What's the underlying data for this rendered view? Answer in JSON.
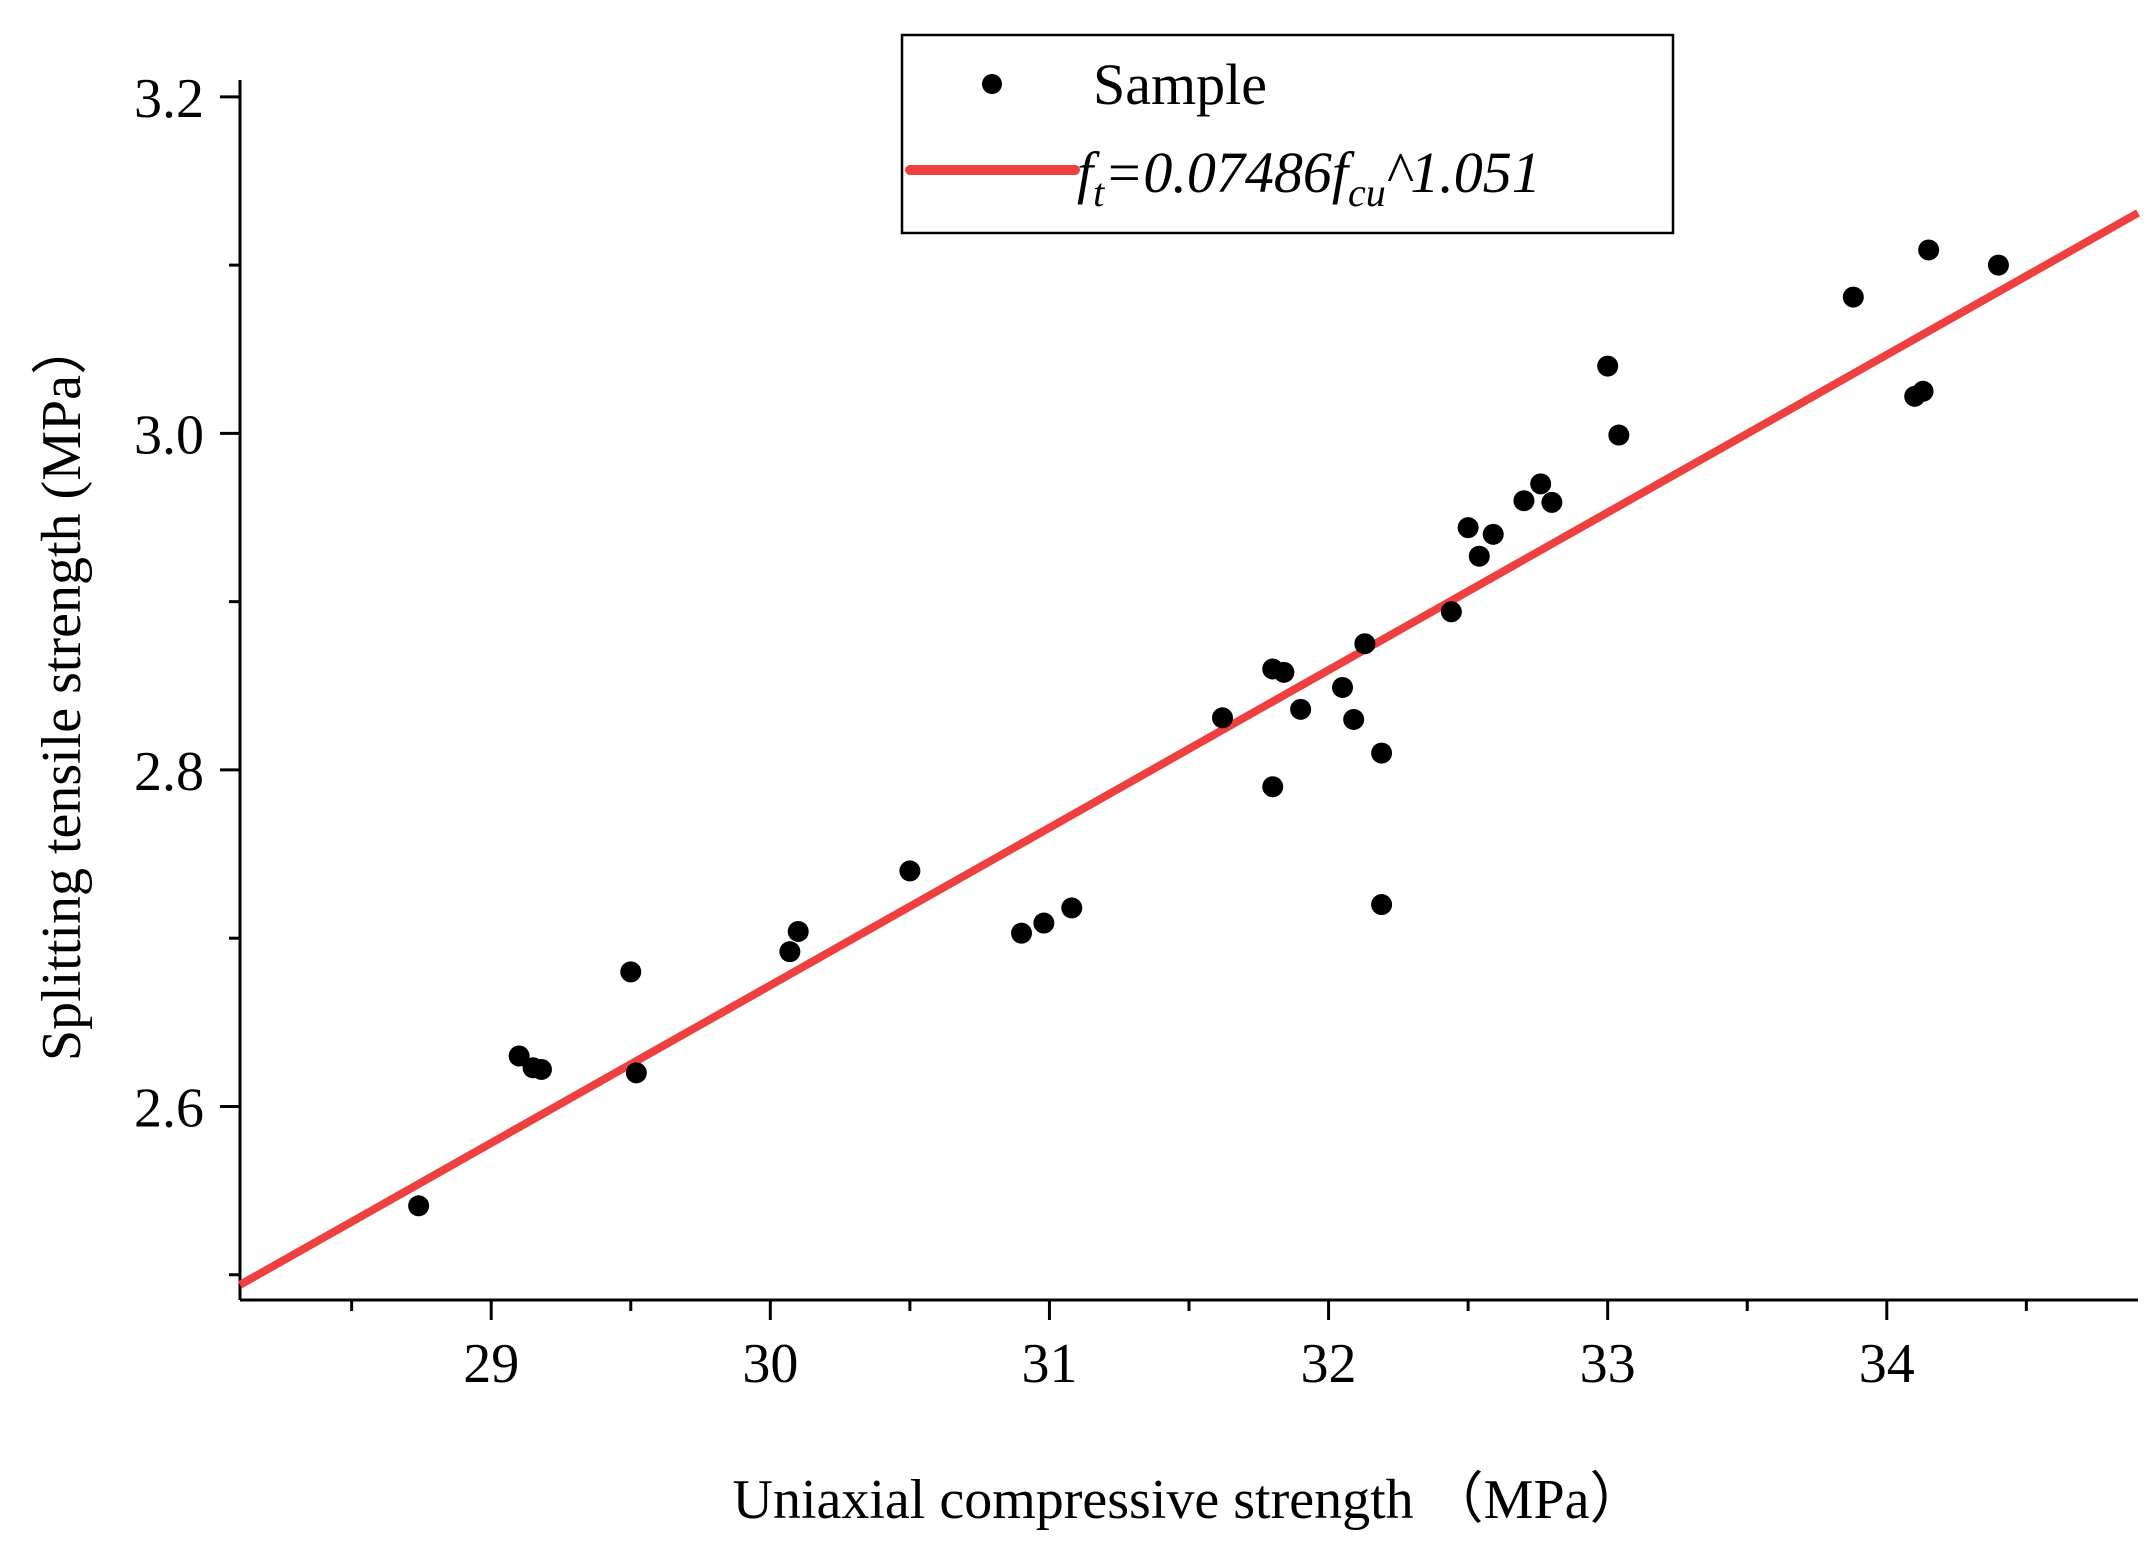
{
  "chart_data": {
    "type": "scatter",
    "title": "",
    "xlabel": "Uniaxial compressive strength （MPa）",
    "ylabel": "Splitting tensile strength (MPa）",
    "xlim": [
      28.1,
      34.9
    ],
    "ylim": [
      2.485,
      3.21
    ],
    "x_ticks": [
      29,
      30,
      31,
      32,
      33,
      34
    ],
    "x_tick_labels": [
      "29",
      "30",
      "31",
      "32",
      "33",
      "34"
    ],
    "x_minor_ticks": [
      28.5,
      29.5,
      30.5,
      31.5,
      32.5,
      33.5,
      34.5
    ],
    "y_ticks": [
      2.6,
      2.8,
      3.0,
      3.2
    ],
    "y_tick_labels": [
      "2.6",
      "2.8",
      "3.0",
      "3.2"
    ],
    "y_minor_ticks": [
      2.5,
      2.7,
      2.9,
      3.1
    ],
    "grid": false,
    "legend": {
      "position": "top-center",
      "entries": [
        {
          "label": "Sample",
          "marker": "circle",
          "color": "#000000"
        },
        {
          "label": "f_t=0.07486f_cu^1.051",
          "marker": "line",
          "color": "#ef4040",
          "parts": {
            "f1": "f",
            "sub1": "t",
            "mid": "=0.07486f",
            "sub2": "cu",
            "tail": "^1.051"
          }
        }
      ]
    },
    "series": [
      {
        "name": "Sample",
        "type": "scatter",
        "color": "#000000",
        "points": [
          [
            28.74,
            2.541
          ],
          [
            29.1,
            2.63
          ],
          [
            29.15,
            2.623
          ],
          [
            29.18,
            2.622
          ],
          [
            29.5,
            2.68
          ],
          [
            29.52,
            2.62
          ],
          [
            30.07,
            2.692
          ],
          [
            30.1,
            2.704
          ],
          [
            30.5,
            2.74
          ],
          [
            30.9,
            2.703
          ],
          [
            30.98,
            2.709
          ],
          [
            31.08,
            2.718
          ],
          [
            31.62,
            2.831
          ],
          [
            31.8,
            2.86
          ],
          [
            31.8,
            2.79
          ],
          [
            31.84,
            2.858
          ],
          [
            31.9,
            2.836
          ],
          [
            32.05,
            2.849
          ],
          [
            32.09,
            2.83
          ],
          [
            32.13,
            2.875
          ],
          [
            32.19,
            2.81
          ],
          [
            32.19,
            2.72
          ],
          [
            32.44,
            2.894
          ],
          [
            32.5,
            2.944
          ],
          [
            32.54,
            2.927
          ],
          [
            32.59,
            2.94
          ],
          [
            32.7,
            2.96
          ],
          [
            32.76,
            2.97
          ],
          [
            32.8,
            2.959
          ],
          [
            33.0,
            3.04
          ],
          [
            33.04,
            2.999
          ],
          [
            33.88,
            3.081
          ],
          [
            34.1,
            3.022
          ],
          [
            34.13,
            3.025
          ],
          [
            34.15,
            3.109
          ],
          [
            34.4,
            3.1
          ]
        ]
      },
      {
        "name": "f_t=0.07486f_cu^1.051",
        "type": "line",
        "color": "#ef4040",
        "x": [
          28.1,
          34.9
        ],
        "y": [
          2.494,
          3.131
        ]
      }
    ]
  }
}
